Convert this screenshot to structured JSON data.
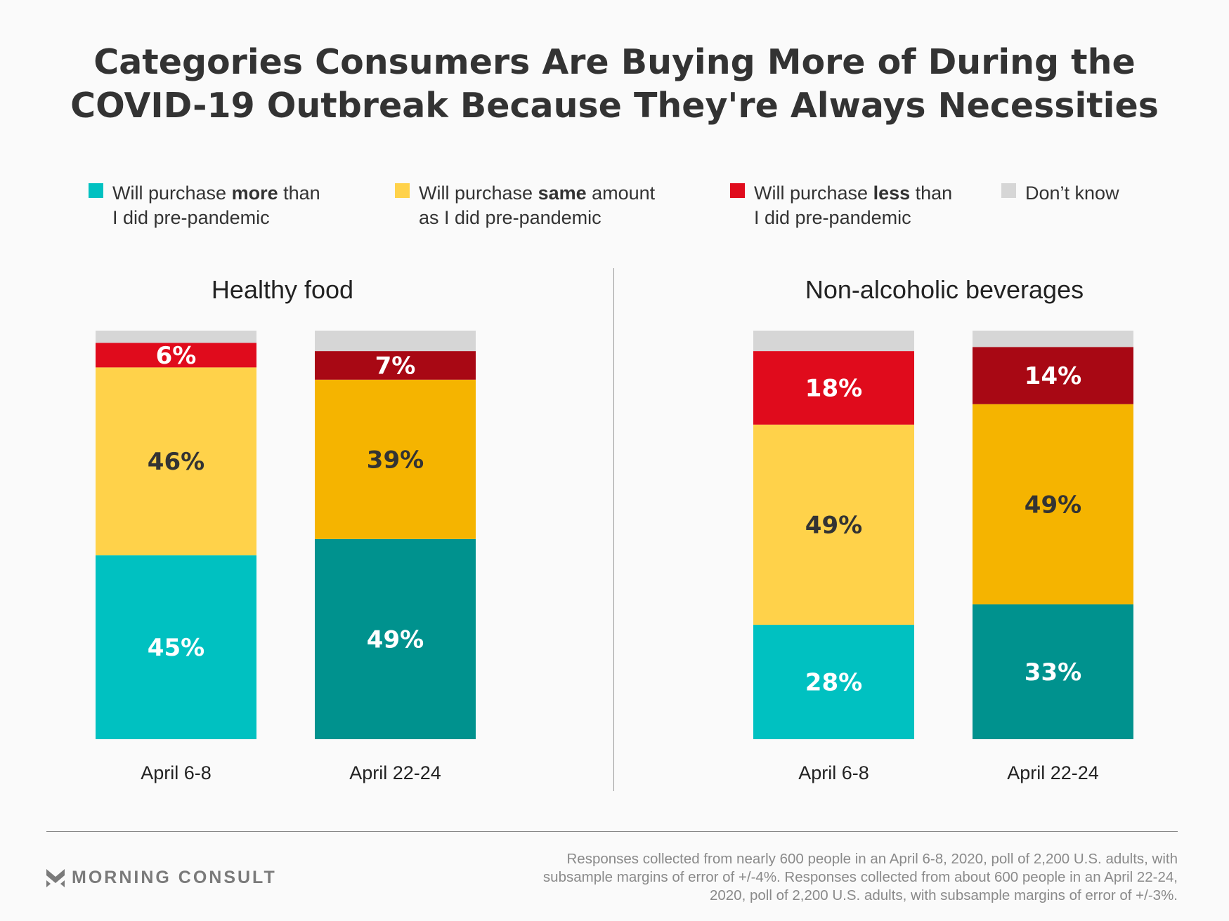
{
  "title_line1": "Categories Consumers Are Buying More of During the",
  "title_line2": "COVID-19 Outbreak Because They're Always Necessities",
  "legend": [
    {
      "pre": "Will purchase ",
      "bold": "more",
      "post": " than",
      "line2": "I did pre-pandemic",
      "color": "#00c1c1"
    },
    {
      "pre": "Will purchase ",
      "bold": "same",
      "post": " amount",
      "line2": "as I did pre-pandemic",
      "color": "#ffd24a"
    },
    {
      "pre": "Will purchase ",
      "bold": "less",
      "post": " than",
      "line2": "I did pre-pandemic",
      "color": "#e00b1c"
    },
    {
      "pre": "Don’t know",
      "bold": "",
      "post": "",
      "line2": "",
      "color": "#d6d6d6"
    }
  ],
  "chart_data": [
    {
      "type": "bar",
      "stacked": true,
      "title": "Healthy food",
      "categories": [
        "April 6-8",
        "April 22-24"
      ],
      "series": [
        {
          "name": "Will purchase more than I did pre-pandemic",
          "values": [
            45,
            49
          ],
          "colors": [
            "#00c1c1",
            "#00928e"
          ],
          "label_color": "#ffffff"
        },
        {
          "name": "Will purchase same amount as I did pre-pandemic",
          "values": [
            46,
            39
          ],
          "colors": [
            "#ffd24a",
            "#f5b400"
          ],
          "label_color": "#333333"
        },
        {
          "name": "Will purchase less than I did pre-pandemic",
          "values": [
            6,
            7
          ],
          "colors": [
            "#e00b1c",
            "#a80814"
          ],
          "label_color": "#ffffff"
        },
        {
          "name": "Don't know",
          "values": [
            3,
            5
          ],
          "colors": [
            "#d6d6d6",
            "#d6d6d6"
          ],
          "label_color": null
        }
      ],
      "ylim": [
        0,
        100
      ],
      "xlabel": "",
      "ylabel": "",
      "grid": false
    },
    {
      "type": "bar",
      "stacked": true,
      "title": "Non-alcoholic beverages",
      "categories": [
        "April 6-8",
        "April 22-24"
      ],
      "series": [
        {
          "name": "Will purchase more than I did pre-pandemic",
          "values": [
            28,
            33
          ],
          "colors": [
            "#00c1c1",
            "#00928e"
          ],
          "label_color": "#ffffff"
        },
        {
          "name": "Will purchase same amount as I did pre-pandemic",
          "values": [
            49,
            49
          ],
          "colors": [
            "#ffd24a",
            "#f5b400"
          ],
          "label_color": "#333333"
        },
        {
          "name": "Will purchase less than I did pre-pandemic",
          "values": [
            18,
            14
          ],
          "colors": [
            "#e00b1c",
            "#a80814"
          ],
          "label_color": "#ffffff"
        },
        {
          "name": "Don't know",
          "values": [
            5,
            4
          ],
          "colors": [
            "#d6d6d6",
            "#d6d6d6"
          ],
          "label_color": null
        }
      ],
      "ylim": [
        0,
        100
      ],
      "xlabel": "",
      "ylabel": "",
      "grid": false
    }
  ],
  "footer": {
    "brand": "MORNING CONSULT",
    "note": "Responses collected from nearly 600 people in an April 6-8, 2020, poll of 2,200 U.S. adults, with subsample margins of error of +/-4%. Responses collected from about 600 people in an April 22-24, 2020, poll of 2,200 U.S. adults, with subsample margins of error of +/-3%."
  }
}
